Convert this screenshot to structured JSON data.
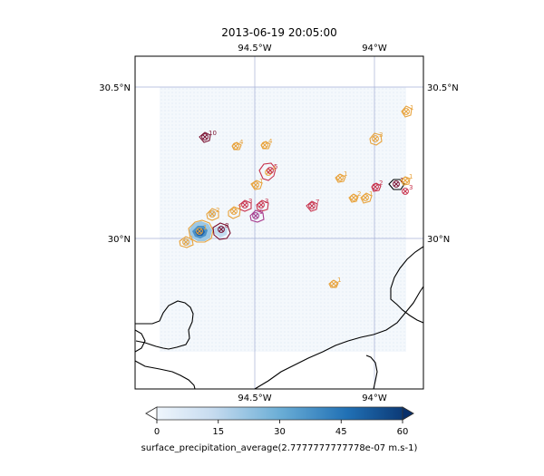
{
  "map": {
    "title": "2013-06-19 20:05:00",
    "lon_top_labels": [
      "94.5°W",
      "94°W"
    ],
    "lon_bottom_labels": [
      "94.5°W",
      "94°W"
    ],
    "lat_left_labels": [
      "30.5°N",
      "30°N"
    ],
    "lat_right_labels": [
      "30.5°N",
      "30°N"
    ],
    "colors": {
      "frame": "#000000",
      "gridline": "#8a96c8",
      "coast": "#000000",
      "domain_fill": "#f2f7fb",
      "cell_orange": "#e8a23a",
      "cell_red": "#c8324c",
      "cell_magenta": "#a83a8c",
      "cell_dark": "#7a1030"
    },
    "tracked_cells": [
      {
        "id": "c1",
        "label": "10",
        "color": "dark"
      },
      {
        "id": "c2",
        "label": "4",
        "color": "orange"
      },
      {
        "id": "c3",
        "label": "4",
        "color": "orange"
      },
      {
        "id": "c4",
        "label": "3",
        "color": "orange"
      },
      {
        "id": "c5",
        "label": "1",
        "color": "orange"
      },
      {
        "id": "c6",
        "label": "4",
        "color": "orange"
      },
      {
        "id": "c7",
        "label": "5",
        "color": "red"
      },
      {
        "id": "c8",
        "label": "1",
        "color": "orange"
      },
      {
        "id": "c9",
        "label": "3",
        "color": "red"
      },
      {
        "id": "c10",
        "label": "2",
        "color": "orange"
      },
      {
        "id": "c11",
        "label": "3",
        "color": "red"
      },
      {
        "id": "c12",
        "label": "7",
        "color": "red"
      },
      {
        "id": "c13",
        "label": "5",
        "color": "magenta"
      },
      {
        "id": "c14",
        "label": "1",
        "color": "orange"
      },
      {
        "id": "c15",
        "label": "2",
        "color": "orange"
      },
      {
        "id": "c16",
        "label": "8",
        "color": "dark"
      },
      {
        "id": "c17",
        "label": "1",
        "color": "orange"
      },
      {
        "id": "c18",
        "label": "2",
        "color": "orange"
      },
      {
        "id": "c19",
        "label": "1",
        "color": "orange"
      },
      {
        "id": "c20",
        "label": "1",
        "color": "orange"
      },
      {
        "id": "c21",
        "label": "1",
        "color": "orange"
      },
      {
        "id": "c22",
        "label": "2",
        "color": "red"
      },
      {
        "id": "c23",
        "label": "1",
        "color": "dark"
      },
      {
        "id": "c24",
        "label": "3",
        "color": "red"
      },
      {
        "id": "c25",
        "label": "1",
        "color": "orange"
      }
    ]
  },
  "colorbar": {
    "label": "surface_precipitation_average(2.7777777777778e-07 m.s-1)",
    "ticks": [
      "0",
      "15",
      "30",
      "45",
      "60"
    ],
    "range": [
      0,
      60
    ],
    "extend": "both",
    "colormap": "Blues",
    "color_low": "#f7fbff",
    "color_high": "#08306b"
  }
}
